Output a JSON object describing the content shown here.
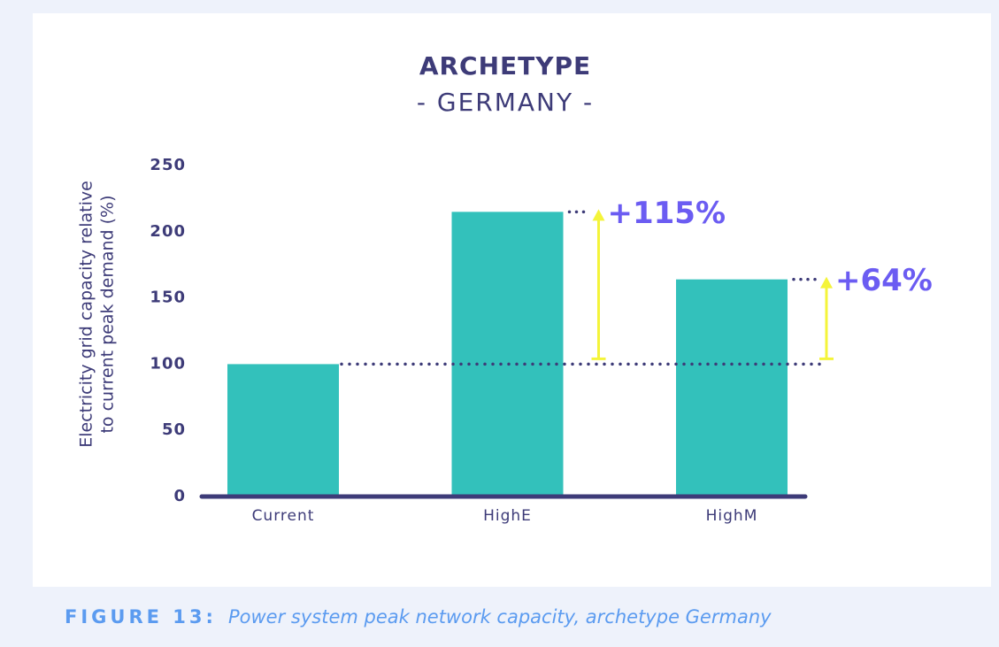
{
  "chart_data": {
    "type": "bar",
    "title": "ARCHETYPE",
    "subtitle": "- GERMANY -",
    "y_label": [
      "Electricity grid capacity relative",
      "to current peak demand (%)"
    ],
    "categories": [
      "Current",
      "HighE",
      "HighM"
    ],
    "values": [
      100,
      215,
      164
    ],
    "color": "#33c1bb",
    "ylim": [
      0,
      250
    ],
    "yticks": [
      0,
      50,
      100,
      150,
      200,
      250
    ],
    "annotations": [
      "+115%",
      "+64%"
    ],
    "annotation_color": "#6b5cf2",
    "arrow_color": "#f4f43a"
  },
  "caption": {
    "label": "FIGURE 13:",
    "text": "Power system peak network capacity, archetype Germany"
  }
}
